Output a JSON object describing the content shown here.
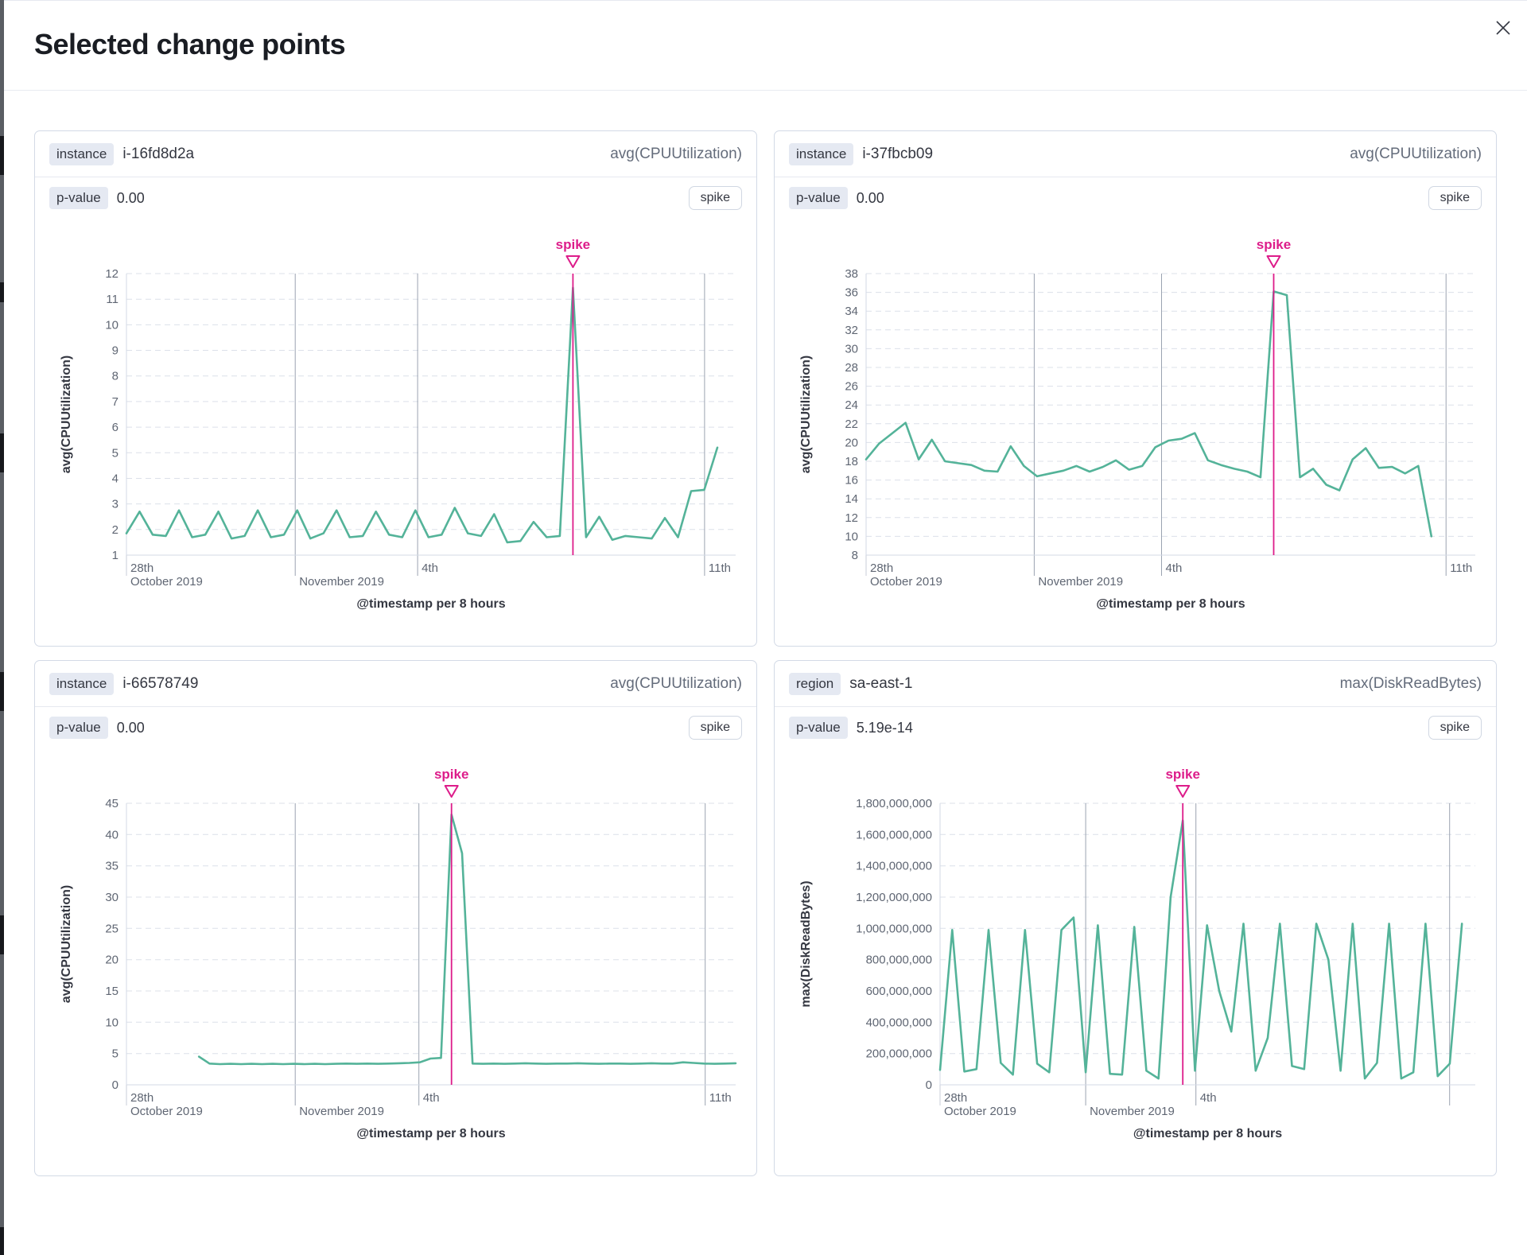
{
  "modal": {
    "title": "Selected change points"
  },
  "colors": {
    "line": "#54b399",
    "accent": "#dd1c8a",
    "grid_dash": "#dce0e9",
    "grid_time": "#9ba3b1",
    "axis": "#d3dae6"
  },
  "panels": [
    {
      "key_label": "instance",
      "key_value": "i-16fd8d2a",
      "metric": "avg(CPUUtilization)",
      "p_label": "p-value",
      "p_value": "0.00",
      "change_type_button": "spike",
      "chart_data": {
        "type": "line",
        "ylabel": "avg(CPUUtilization)",
        "xlabel": "@timestamp per 8 hours",
        "ylim": [
          1,
          12
        ],
        "y_ticks": [
          1,
          2,
          3,
          4,
          5,
          6,
          7,
          8,
          9,
          10,
          11,
          12
        ],
        "y_tick_labels": [
          "1",
          "2",
          "3",
          "4",
          "5",
          "6",
          "7",
          "8",
          "9",
          "10",
          "11",
          "12"
        ],
        "x_domain": [
          0,
          0.97
        ],
        "x_marks": [
          {
            "f": 0,
            "line1": "28th",
            "line2": "October 2019",
            "grid": false
          },
          {
            "f": 0.277,
            "line1": "",
            "line2": "November 2019",
            "grid": true
          },
          {
            "f": 0.478,
            "line1": "4th",
            "line2": "",
            "grid": true
          },
          {
            "f": 0.949,
            "line1": "11th",
            "line2": "",
            "grid": true
          }
        ],
        "annotation": {
          "label": "spike",
          "index": 34
        },
        "values": [
          1.85,
          2.7,
          1.8,
          1.75,
          2.75,
          1.7,
          1.8,
          2.7,
          1.65,
          1.75,
          2.75,
          1.7,
          1.8,
          2.75,
          1.65,
          1.85,
          2.75,
          1.7,
          1.75,
          2.7,
          1.8,
          1.7,
          2.75,
          1.7,
          1.8,
          2.85,
          1.85,
          1.75,
          2.6,
          1.5,
          1.55,
          2.3,
          1.7,
          1.75,
          11.45,
          1.7,
          2.5,
          1.6,
          1.75,
          1.7,
          1.65,
          2.45,
          1.7,
          3.5,
          3.55,
          5.2
        ]
      }
    },
    {
      "key_label": "instance",
      "key_value": "i-37fbcb09",
      "metric": "avg(CPUUtilization)",
      "p_label": "p-value",
      "p_value": "0.00",
      "change_type_button": "spike",
      "chart_data": {
        "type": "line",
        "ylabel": "avg(CPUUtilization)",
        "xlabel": "@timestamp per 8 hours",
        "ylim": [
          8,
          38
        ],
        "y_ticks": [
          8,
          10,
          12,
          14,
          16,
          18,
          20,
          22,
          24,
          26,
          28,
          30,
          32,
          34,
          36,
          38
        ],
        "y_tick_labels": [
          "8",
          "10",
          "12",
          "14",
          "16",
          "18",
          "20",
          "22",
          "24",
          "26",
          "28",
          "30",
          "32",
          "34",
          "36",
          "38"
        ],
        "x_domain": [
          0,
          0.928
        ],
        "x_marks": [
          {
            "f": 0,
            "line1": "28th",
            "line2": "October 2019",
            "grid": false
          },
          {
            "f": 0.276,
            "line1": "",
            "line2": "November 2019",
            "grid": true
          },
          {
            "f": 0.485,
            "line1": "4th",
            "line2": "",
            "grid": true
          },
          {
            "f": 0.952,
            "line1": "11th",
            "line2": "",
            "grid": true
          }
        ],
        "annotation": {
          "label": "spike",
          "index": 31
        },
        "values": [
          18.2,
          19.9,
          21.0,
          22.1,
          18.2,
          20.3,
          18.0,
          17.8,
          17.6,
          17.0,
          16.9,
          19.6,
          17.5,
          16.4,
          16.7,
          17.0,
          17.5,
          16.9,
          17.4,
          18.1,
          17.1,
          17.5,
          19.5,
          20.2,
          20.4,
          21.0,
          18.1,
          17.6,
          17.2,
          16.9,
          16.3,
          36.1,
          35.7,
          16.3,
          17.2,
          15.5,
          14.9,
          18.2,
          19.4,
          17.3,
          17.4,
          16.7,
          17.5,
          10.0
        ]
      }
    },
    {
      "key_label": "instance",
      "key_value": "i-66578749",
      "metric": "avg(CPUUtilization)",
      "p_label": "p-value",
      "p_value": "0.00",
      "change_type_button": "spike",
      "chart_data": {
        "type": "line",
        "ylabel": "avg(CPUUtilization)",
        "xlabel": "@timestamp per 8 hours",
        "ylim": [
          0,
          45
        ],
        "y_ticks": [
          0,
          5,
          10,
          15,
          20,
          25,
          30,
          35,
          40,
          45
        ],
        "y_tick_labels": [
          "0",
          "5",
          "10",
          "15",
          "20",
          "25",
          "30",
          "35",
          "40",
          "45"
        ],
        "x_domain": [
          0.119,
          1.0
        ],
        "x_marks": [
          {
            "f": 0,
            "line1": "28th",
            "line2": "October 2019",
            "grid": false
          },
          {
            "f": 0.277,
            "line1": "",
            "line2": "November 2019",
            "grid": true
          },
          {
            "f": 0.48,
            "line1": "4th",
            "line2": "",
            "grid": true
          },
          {
            "f": 0.95,
            "line1": "11th",
            "line2": "",
            "grid": true
          }
        ],
        "annotation": {
          "label": "spike",
          "index": 24
        },
        "values": [
          4.5,
          3.4,
          3.3,
          3.35,
          3.3,
          3.35,
          3.3,
          3.35,
          3.3,
          3.35,
          3.3,
          3.35,
          3.3,
          3.35,
          3.4,
          3.35,
          3.4,
          3.35,
          3.4,
          3.45,
          3.5,
          3.6,
          4.2,
          4.3,
          43.2,
          37.0,
          3.4,
          3.35,
          3.4,
          3.35,
          3.4,
          3.45,
          3.4,
          3.35,
          3.4,
          3.4,
          3.45,
          3.4,
          3.35,
          3.4,
          3.4,
          3.35,
          3.4,
          3.45,
          3.4,
          3.4,
          3.6,
          3.5,
          3.4,
          3.35,
          3.4,
          3.45
        ]
      }
    },
    {
      "key_label": "region",
      "key_value": "sa-east-1",
      "metric": "max(DiskReadBytes)",
      "p_label": "p-value",
      "p_value": "5.19e-14",
      "change_type_button": "spike",
      "chart_data": {
        "type": "line",
        "ylabel": "max(DiskReadBytes)",
        "xlabel": "@timestamp per 8 hours",
        "ylim": [
          0,
          1800000000
        ],
        "y_ticks": [
          0,
          200000000,
          400000000,
          600000000,
          800000000,
          1000000000,
          1200000000,
          1400000000,
          1600000000,
          1800000000
        ],
        "y_tick_labels": [
          "0",
          "200,000,000",
          "400,000,000",
          "600,000,000",
          "800,000,000",
          "1,000,000,000",
          "1,200,000,000",
          "1,400,000,000",
          "1,600,000,000",
          "1,800,000,000"
        ],
        "x_domain": [
          0,
          0.975
        ],
        "x_marks": [
          {
            "f": 0,
            "line1": "28th",
            "line2": "October 2019",
            "grid": false
          },
          {
            "f": 0.272,
            "line1": "",
            "line2": "November 2019",
            "grid": true
          },
          {
            "f": 0.478,
            "line1": "4th",
            "line2": "",
            "grid": true
          },
          {
            "f": 0.952,
            "line1": "",
            "line2": "",
            "grid": true
          }
        ],
        "annotation": {
          "label": "spike",
          "index": 20
        },
        "values": [
          95000000,
          990000000,
          85000000,
          100000000,
          990000000,
          140000000,
          65000000,
          990000000,
          135000000,
          80000000,
          990000000,
          1070000000,
          80000000,
          1020000000,
          70000000,
          65000000,
          1010000000,
          90000000,
          40000000,
          1200000000,
          1690000000,
          90000000,
          1020000000,
          600000000,
          340000000,
          1030000000,
          90000000,
          300000000,
          1030000000,
          120000000,
          100000000,
          1030000000,
          800000000,
          90000000,
          1030000000,
          40000000,
          140000000,
          1030000000,
          40000000,
          80000000,
          1030000000,
          55000000,
          135000000,
          1030000000
        ]
      }
    }
  ]
}
